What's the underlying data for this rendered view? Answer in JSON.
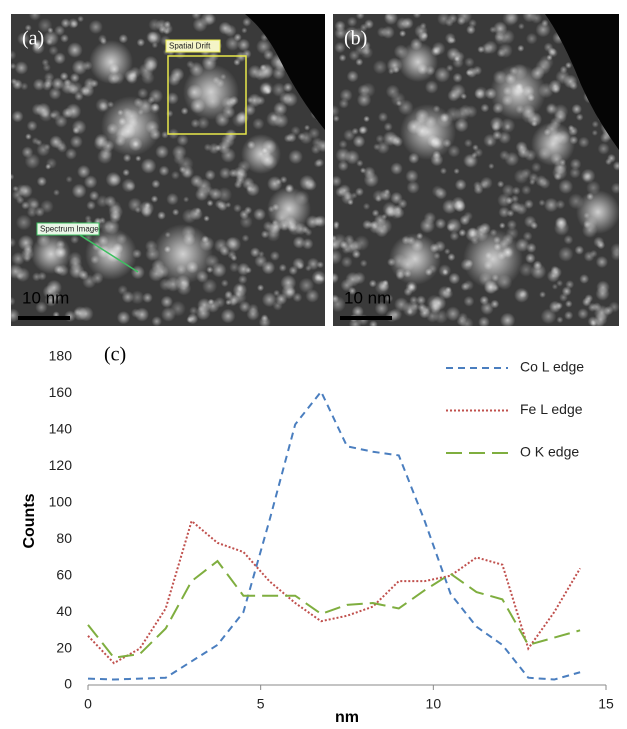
{
  "panels": [
    {
      "label": "(a)",
      "scale_bar": "10 nm",
      "annotations": [
        "Spatial Drift",
        "Spectrum Image"
      ]
    },
    {
      "label": "(b)",
      "scale_bar": "10 nm"
    }
  ],
  "chart_data": {
    "type": "line",
    "annotation": "(c)",
    "x_label": "nm",
    "y_label": "Counts",
    "x": [
      0,
      0.75,
      1.5,
      2.25,
      3,
      3.75,
      4.5,
      5.25,
      6,
      6.75,
      7.5,
      8.25,
      9,
      9.75,
      10.5,
      11.25,
      12,
      12.75,
      13.5,
      14.25
    ],
    "series": [
      {
        "name": "Co L edge",
        "color": "#4a7ebf",
        "dash": "dashed",
        "values": [
          3.5,
          3,
          3.5,
          4,
          13,
          22,
          40,
          90,
          143,
          161,
          131,
          128,
          126,
          90,
          50,
          32,
          22,
          4,
          3,
          7
        ]
      },
      {
        "name": "Fe L edge",
        "color": "#c0504d",
        "dash": "dotted",
        "values": [
          27,
          12,
          20,
          42,
          90,
          78,
          73,
          57,
          45,
          35,
          38,
          43,
          57,
          57,
          60,
          70,
          66,
          20,
          40,
          64
        ]
      },
      {
        "name": "O K edge",
        "color": "#7fae3f",
        "dash": "longdash",
        "values": [
          33,
          15,
          17,
          31,
          57,
          68,
          49,
          49,
          49,
          39,
          44,
          45,
          42,
          52,
          61,
          51,
          47,
          22,
          26,
          30
        ]
      }
    ],
    "xlim": [
      0,
      15
    ],
    "xticks": [
      0,
      5,
      10,
      15
    ],
    "ylim": [
      0,
      180
    ],
    "yticks": [
      0,
      20,
      40,
      60,
      80,
      100,
      120,
      140,
      160,
      180
    ],
    "grid": false,
    "legend": "upper right"
  }
}
